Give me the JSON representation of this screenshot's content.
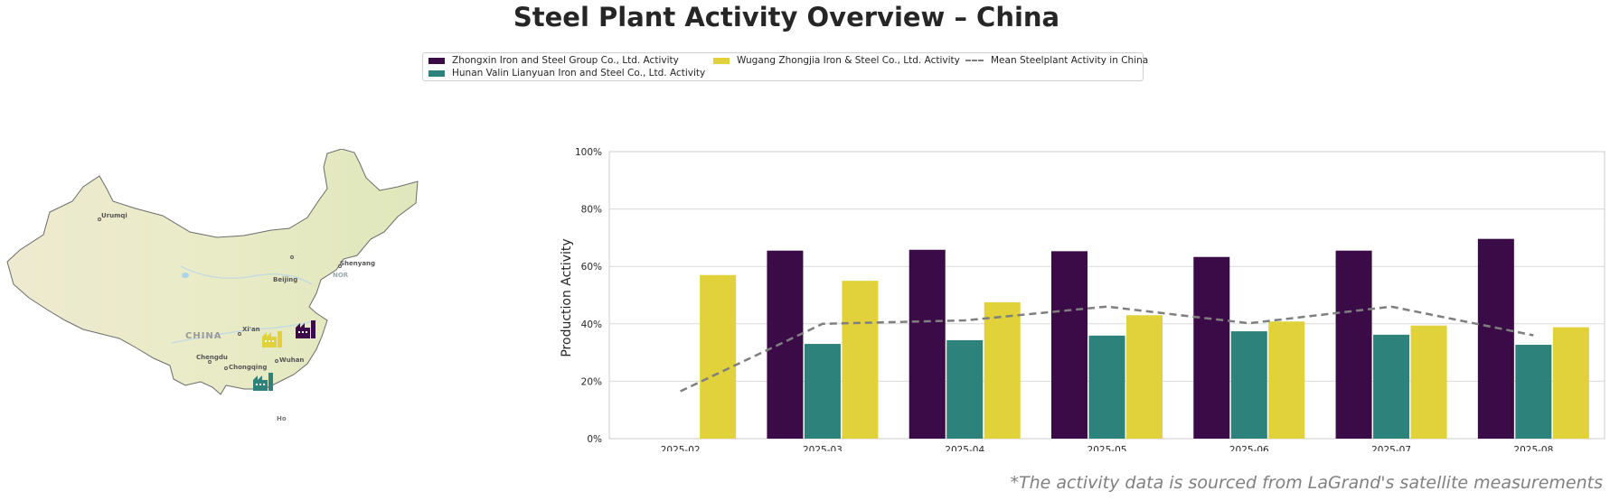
{
  "title": "Steel Plant Activity Overview – China",
  "footnote": "*The activity data is sourced from LaGrand's satellite measurements",
  "map": {
    "country_label": "CHINA",
    "cities": [
      "Urumqi",
      "Beijing",
      "Shenyang",
      "Xi'an",
      "Wuhan",
      "Chengdu",
      "Chongqing"
    ],
    "fragments": [
      "NOR",
      "Ho"
    ]
  },
  "legend": {
    "items": [
      {
        "label": "Zhongxin Iron and Steel Group Co., Ltd. Activity",
        "color": "#3b0b47"
      },
      {
        "label": "Hunan Valin Lianyuan Iron and Steel Co., Ltd. Activity",
        "color": "#2e827c"
      },
      {
        "label": "Wugang Zhongjia Iron & Steel Co., Ltd. Activity",
        "color": "#e1d13b"
      },
      {
        "label": "Mean Steelplant Activity in China",
        "color": "#7f7f7f"
      }
    ]
  },
  "chart_data": {
    "type": "bar",
    "categories": [
      "2025-02",
      "2025-03",
      "2025-04",
      "2025-05",
      "2025-06",
      "2025-07",
      "2025-08"
    ],
    "series": [
      {
        "name": "Zhongxin Iron and Steel Group Co., Ltd. Activity",
        "color": "#3b0b47",
        "values": [
          null,
          65.5,
          65.8,
          65.3,
          63.3,
          65.5,
          69.6
        ]
      },
      {
        "name": "Hunan Valin Lianyuan Iron and Steel Co., Ltd. Activity",
        "color": "#2e827c",
        "values": [
          null,
          33.0,
          34.3,
          35.9,
          37.4,
          36.2,
          32.7
        ]
      },
      {
        "name": "Wugang Zhongjia Iron & Steel Co., Ltd. Activity",
        "color": "#e1d13b",
        "values": [
          57.0,
          55.0,
          47.5,
          43.0,
          40.8,
          39.4,
          38.8
        ]
      }
    ],
    "line": {
      "name": "Mean Steelplant Activity in China",
      "type": "dashed",
      "color": "#7f7f7f",
      "values": [
        16.5,
        40.0,
        41.2,
        46.0,
        40.2,
        46.0,
        36.0
      ]
    },
    "ylabel": "Production Activity",
    "xlabel": "",
    "ylim": [
      0,
      100
    ],
    "yticks": [
      "0%",
      "20%",
      "40%",
      "60%",
      "80%",
      "100%"
    ],
    "grid": "horizontal",
    "legend_position": "top-center"
  }
}
